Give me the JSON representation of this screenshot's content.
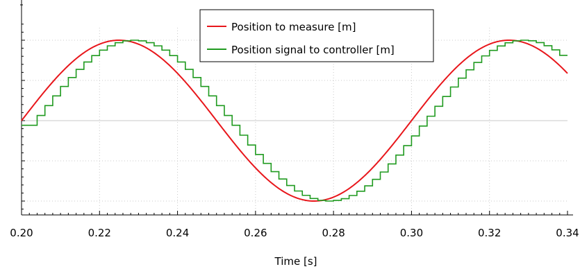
{
  "chart_data": {
    "type": "line",
    "title": "",
    "xlabel": "Time [s]",
    "ylabel": "",
    "xlim": [
      0.2,
      0.34
    ],
    "ylim": [
      -1.3,
      1.3
    ],
    "x_ticks": [
      0.2,
      0.22,
      0.24,
      0.26,
      0.28,
      0.3,
      0.32,
      0.34
    ],
    "x_tick_labels": [
      "0.20",
      "0.22",
      "0.24",
      "0.26",
      "0.28",
      "0.30",
      "0.32",
      "0.34"
    ],
    "y_grid": [
      -1.0,
      -0.5,
      0.0,
      0.5,
      1.0
    ],
    "y_tick_labels_visible": false,
    "grid": true,
    "grid_style": "dotted",
    "legend": {
      "placement": "top-center",
      "entries": [
        {
          "name": "Position to measure [m]",
          "color": "#e8161b"
        },
        {
          "name": "Position signal to controller [m]",
          "color": "#1f9a1f"
        }
      ]
    },
    "series": [
      {
        "name": "Position to measure [m]",
        "style": "line",
        "color": "#e8161b",
        "frequency_hz": 10,
        "amplitude": 1.0,
        "phase_note": "sine, zero at t=0.20, peaks at 0.225 and 0.325, trough at 0.275",
        "x": [
          0.2,
          0.205,
          0.21,
          0.215,
          0.22,
          0.225,
          0.23,
          0.235,
          0.24,
          0.245,
          0.25,
          0.255,
          0.26,
          0.265,
          0.27,
          0.275,
          0.28,
          0.285,
          0.29,
          0.295,
          0.3,
          0.305,
          0.31,
          0.315,
          0.32,
          0.325,
          0.33,
          0.335,
          0.34
        ],
        "y": [
          0.0,
          0.309,
          0.588,
          0.809,
          0.951,
          1.0,
          0.951,
          0.809,
          0.588,
          0.309,
          0.0,
          -0.309,
          -0.588,
          -0.809,
          -0.951,
          -1.0,
          -0.951,
          -0.809,
          -0.588,
          -0.309,
          0.0,
          0.309,
          0.588,
          0.809,
          0.951,
          1.0,
          0.951,
          0.809,
          0.588
        ]
      },
      {
        "name": "Position signal to controller [m]",
        "style": "step",
        "color": "#1f9a1f",
        "sample_period_s": 0.002,
        "delay_s": 0.004,
        "x": [
          0.2,
          0.202,
          0.204,
          0.206,
          0.208,
          0.21,
          0.212,
          0.214,
          0.216,
          0.218,
          0.22,
          0.222,
          0.224,
          0.226,
          0.228,
          0.23,
          0.232,
          0.234,
          0.236,
          0.238,
          0.24,
          0.242,
          0.244,
          0.246,
          0.248,
          0.25,
          0.252,
          0.254,
          0.256,
          0.258,
          0.26,
          0.262,
          0.264,
          0.266,
          0.268,
          0.27,
          0.272,
          0.274,
          0.276,
          0.278,
          0.28,
          0.282,
          0.284,
          0.286,
          0.288,
          0.29,
          0.292,
          0.294,
          0.296,
          0.298,
          0.3,
          0.302,
          0.304,
          0.306,
          0.308,
          0.31,
          0.312,
          0.314,
          0.316,
          0.318,
          0.32,
          0.322,
          0.324,
          0.326,
          0.328,
          0.33,
          0.332,
          0.334,
          0.336,
          0.338
        ],
        "y": [
          -0.058,
          -0.058,
          0.064,
          0.187,
          0.308,
          0.425,
          0.536,
          0.637,
          0.729,
          0.809,
          0.877,
          0.93,
          0.969,
          0.992,
          1.0,
          0.992,
          0.969,
          0.93,
          0.877,
          0.809,
          0.729,
          0.637,
          0.536,
          0.425,
          0.308,
          0.187,
          0.064,
          -0.058,
          -0.181,
          -0.303,
          -0.421,
          -0.532,
          -0.634,
          -0.726,
          -0.807,
          -0.875,
          -0.929,
          -0.968,
          -0.992,
          -1.0,
          -0.992,
          -0.97,
          -0.931,
          -0.878,
          -0.811,
          -0.73,
          -0.639,
          -0.538,
          -0.428,
          -0.311,
          -0.19,
          -0.067,
          0.055,
          0.178,
          0.3,
          0.418,
          0.529,
          0.632,
          0.724,
          0.805,
          0.873,
          0.928,
          0.968,
          0.992,
          1.0,
          0.993,
          0.97,
          0.932,
          0.88,
          0.812
        ]
      }
    ]
  }
}
